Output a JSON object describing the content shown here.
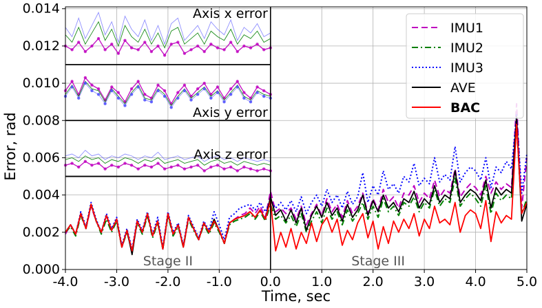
{
  "chart_data": {
    "type": "line",
    "xlabel": "Time, sec",
    "ylabel": "Error, rad",
    "xlim": [
      -4.0,
      5.0
    ],
    "ylim": [
      0.0,
      0.0141
    ],
    "xticks": [
      "-4.0",
      "-3.0",
      "-2.0",
      "-1.0",
      "0.0",
      "1.0",
      "2.0",
      "3.0",
      "4.0",
      "5.0"
    ],
    "yticks": [
      "0.000",
      "0.002",
      "0.004",
      "0.006",
      "0.008",
      "0.010",
      "0.012",
      "0.014"
    ],
    "grid": true,
    "legend_position": "top-right",
    "legend": [
      {
        "name": "IMU1",
        "color": "#bf00bf",
        "style": "dashed",
        "bold": false
      },
      {
        "name": "IMU2",
        "color": "#008000",
        "style": "dashdot",
        "bold": false
      },
      {
        "name": "IMU3",
        "color": "#0000ff",
        "style": "dotted",
        "bold": false
      },
      {
        "name": "AVE",
        "color": "#000000",
        "style": "solid",
        "bold": false
      },
      {
        "name": "BAC",
        "color": "#ff0000",
        "style": "solid",
        "bold": true
      }
    ],
    "stages": [
      {
        "label": "Stage II",
        "x": -2.0
      },
      {
        "label": "Stage III",
        "x": 2.1
      }
    ],
    "insets": [
      {
        "title": "Axis x error",
        "y_range": [
          0.011,
          0.0141
        ],
        "baseline": 0.012
      },
      {
        "title": "Axis y error",
        "y_range": [
          0.008,
          0.011
        ],
        "baseline": 0.0097
      },
      {
        "title": "Axis z error",
        "y_range": [
          0.005,
          0.008
        ],
        "baseline": 0.0057
      }
    ],
    "x": [
      -4.0,
      -3.9,
      -3.8,
      -3.7,
      -3.6,
      -3.5,
      -3.4,
      -3.3,
      -3.2,
      -3.1,
      -3.0,
      -2.9,
      -2.8,
      -2.7,
      -2.6,
      -2.5,
      -2.4,
      -2.3,
      -2.2,
      -2.1,
      -2.0,
      -1.9,
      -1.8,
      -1.7,
      -1.6,
      -1.5,
      -1.4,
      -1.3,
      -1.2,
      -1.1,
      -1.0,
      -0.9,
      -0.8,
      -0.7,
      -0.6,
      -0.5,
      -0.4,
      -0.3,
      -0.2,
      -0.1,
      0.0,
      0.1,
      0.2,
      0.3,
      0.4,
      0.5,
      0.6,
      0.7,
      0.8,
      0.9,
      1.0,
      1.1,
      1.2,
      1.3,
      1.4,
      1.5,
      1.6,
      1.7,
      1.8,
      1.9,
      2.0,
      2.1,
      2.2,
      2.3,
      2.4,
      2.5,
      2.6,
      2.7,
      2.8,
      2.9,
      3.0,
      3.1,
      3.2,
      3.3,
      3.4,
      3.5,
      3.6,
      3.7,
      3.8,
      3.9,
      4.0,
      4.1,
      4.2,
      4.3,
      4.4,
      4.5,
      4.6,
      4.7,
      4.8,
      4.9,
      5.0
    ],
    "series": [
      {
        "name": "IMU1",
        "values": [
          0.0019,
          0.0024,
          0.0019,
          0.003,
          0.0022,
          0.0034,
          0.0026,
          0.002,
          0.0029,
          0.0021,
          0.0027,
          0.0012,
          0.0021,
          0.001,
          0.0026,
          0.002,
          0.003,
          0.0018,
          0.0026,
          0.0011,
          0.003,
          0.0019,
          0.0024,
          0.0012,
          0.0028,
          0.0022,
          0.0016,
          0.0025,
          0.002,
          0.0026,
          0.0021,
          0.0014,
          0.0025,
          0.0027,
          0.0029,
          0.003,
          0.0033,
          0.003,
          0.0034,
          0.0028,
          0.0042,
          0.0031,
          0.0033,
          0.003,
          0.0033,
          0.0027,
          0.0034,
          0.0024,
          0.003,
          0.0035,
          0.0029,
          0.0038,
          0.0031,
          0.0035,
          0.0028,
          0.0037,
          0.003,
          0.0034,
          0.0041,
          0.003,
          0.0038,
          0.0032,
          0.0043,
          0.0036,
          0.0039,
          0.0033,
          0.0041,
          0.004,
          0.0045,
          0.0036,
          0.0041,
          0.0038,
          0.0048,
          0.0039,
          0.0043,
          0.0041,
          0.0054,
          0.0039,
          0.0043,
          0.0046,
          0.0044,
          0.004,
          0.005,
          0.0041,
          0.0047,
          0.0043,
          0.0046,
          0.0044,
          0.0089,
          0.0033,
          0.006
        ]
      },
      {
        "name": "IMU2",
        "values": [
          0.002,
          0.0023,
          0.0018,
          0.0029,
          0.0022,
          0.0035,
          0.0026,
          0.0019,
          0.0027,
          0.002,
          0.0026,
          0.0012,
          0.002,
          0.001,
          0.0025,
          0.0019,
          0.0029,
          0.0017,
          0.0025,
          0.0011,
          0.0029,
          0.0018,
          0.0023,
          0.0012,
          0.0027,
          0.0021,
          0.0016,
          0.0024,
          0.0019,
          0.0025,
          0.002,
          0.0014,
          0.0024,
          0.0026,
          0.0027,
          0.0028,
          0.003,
          0.0027,
          0.0031,
          0.0026,
          0.0035,
          0.0027,
          0.0029,
          0.0025,
          0.0029,
          0.0023,
          0.003,
          0.002,
          0.0026,
          0.0031,
          0.0025,
          0.0033,
          0.0027,
          0.0031,
          0.0024,
          0.0032,
          0.0026,
          0.003,
          0.0036,
          0.0027,
          0.0034,
          0.0028,
          0.0038,
          0.0031,
          0.0034,
          0.0029,
          0.0036,
          0.0034,
          0.0039,
          0.0031,
          0.0036,
          0.0033,
          0.0043,
          0.0034,
          0.0038,
          0.0036,
          0.0049,
          0.0034,
          0.0038,
          0.0041,
          0.0038,
          0.0034,
          0.0045,
          0.003,
          0.0041,
          0.0037,
          0.004,
          0.0038,
          0.0078,
          0.003,
          0.0038
        ]
      },
      {
        "name": "IMU3",
        "values": [
          0.002,
          0.0024,
          0.0019,
          0.0031,
          0.0023,
          0.0036,
          0.0027,
          0.002,
          0.003,
          0.0022,
          0.0028,
          0.0013,
          0.0022,
          0.0011,
          0.0027,
          0.0021,
          0.0031,
          0.0019,
          0.0028,
          0.0012,
          0.0031,
          0.002,
          0.0025,
          0.0013,
          0.0029,
          0.0023,
          0.0017,
          0.0026,
          0.0021,
          0.0031,
          0.0024,
          0.0016,
          0.0028,
          0.003,
          0.0033,
          0.0034,
          0.0035,
          0.0032,
          0.0036,
          0.0031,
          0.0037,
          0.0033,
          0.0036,
          0.0032,
          0.0037,
          0.0031,
          0.0039,
          0.003,
          0.0036,
          0.004,
          0.0034,
          0.0043,
          0.0036,
          0.004,
          0.0033,
          0.0042,
          0.0035,
          0.0039,
          0.0052,
          0.0036,
          0.0045,
          0.004,
          0.0053,
          0.0043,
          0.0046,
          0.0041,
          0.005,
          0.0047,
          0.0057,
          0.0045,
          0.0049,
          0.0046,
          0.006,
          0.0047,
          0.0051,
          0.0048,
          0.0066,
          0.0047,
          0.0052,
          0.0055,
          0.0053,
          0.0048,
          0.006,
          0.0044,
          0.0055,
          0.0052,
          0.0058,
          0.0054,
          0.0083,
          0.0041,
          0.0062
        ]
      },
      {
        "name": "AVE",
        "values": [
          0.002,
          0.0024,
          0.0019,
          0.003,
          0.0022,
          0.0035,
          0.0026,
          0.002,
          0.0029,
          0.0021,
          0.0027,
          0.0012,
          0.0021,
          0.0008,
          0.0026,
          0.002,
          0.003,
          0.0018,
          0.0026,
          0.0011,
          0.003,
          0.0019,
          0.0024,
          0.0012,
          0.0028,
          0.0022,
          0.0016,
          0.0025,
          0.002,
          0.0027,
          0.0021,
          0.0014,
          0.0025,
          0.0027,
          0.0028,
          0.0029,
          0.0031,
          0.0028,
          0.0032,
          0.0027,
          0.0039,
          0.0029,
          0.0032,
          0.0026,
          0.0032,
          0.0025,
          0.0033,
          0.0021,
          0.0029,
          0.0034,
          0.0028,
          0.0036,
          0.0029,
          0.0033,
          0.0026,
          0.0035,
          0.0028,
          0.0032,
          0.004,
          0.0029,
          0.0037,
          0.0031,
          0.004,
          0.0033,
          0.0036,
          0.0031,
          0.0038,
          0.0036,
          0.0042,
          0.0033,
          0.0038,
          0.0035,
          0.0045,
          0.0036,
          0.004,
          0.0038,
          0.0053,
          0.0036,
          0.004,
          0.0043,
          0.0041,
          0.0037,
          0.0048,
          0.0033,
          0.0044,
          0.004,
          0.0043,
          0.0041,
          0.0082,
          0.0026,
          0.0035
        ]
      },
      {
        "name": "BAC",
        "values": [
          0.002,
          0.0024,
          0.0019,
          0.003,
          0.0022,
          0.0035,
          0.0026,
          0.002,
          0.0029,
          0.0021,
          0.0027,
          0.0012,
          0.0021,
          0.001,
          0.0026,
          0.002,
          0.003,
          0.0018,
          0.0026,
          0.0011,
          0.003,
          0.0019,
          0.0024,
          0.0012,
          0.0028,
          0.0022,
          0.0016,
          0.0025,
          0.002,
          0.0026,
          0.0021,
          0.0014,
          0.0025,
          0.0027,
          0.0028,
          0.0029,
          0.0031,
          0.0028,
          0.0032,
          0.0027,
          0.0037,
          0.001,
          0.002,
          0.0012,
          0.0022,
          0.0011,
          0.002,
          0.0014,
          0.0025,
          0.0015,
          0.0024,
          0.0028,
          0.002,
          0.0027,
          0.0013,
          0.0021,
          0.0016,
          0.0025,
          0.003,
          0.0017,
          0.0026,
          0.0011,
          0.0023,
          0.0014,
          0.0026,
          0.002,
          0.0027,
          0.0022,
          0.003,
          0.0018,
          0.0027,
          0.0022,
          0.0034,
          0.0025,
          0.0027,
          0.0024,
          0.0036,
          0.002,
          0.0029,
          0.0032,
          0.003,
          0.0022,
          0.0037,
          0.0015,
          0.0031,
          0.0025,
          0.0029,
          0.0027,
          0.0078,
          0.003,
          0.0036
        ]
      }
    ],
    "inset_series": [
      {
        "inset": 0,
        "name": "IMU1",
        "values": [
          0.012,
          0.0118,
          0.0122,
          0.0117,
          0.012,
          0.0124,
          0.0118,
          0.0121,
          0.0116,
          0.0123,
          0.0119,
          0.0118,
          0.0122,
          0.0117,
          0.012,
          0.0115,
          0.0121,
          0.0122,
          0.0116,
          0.0118,
          0.012,
          0.0117,
          0.0121,
          0.0119,
          0.0118,
          0.0122,
          0.0117,
          0.012,
          0.0119,
          0.0121,
          0.0118,
          0.0119
        ]
      },
      {
        "inset": 0,
        "name": "IMU2",
        "values": [
          0.0126,
          0.0122,
          0.013,
          0.0121,
          0.0127,
          0.0133,
          0.0123,
          0.0129,
          0.012,
          0.0131,
          0.0125,
          0.0122,
          0.0129,
          0.0121,
          0.0127,
          0.0119,
          0.0128,
          0.013,
          0.0121,
          0.0124,
          0.0127,
          0.0121,
          0.0128,
          0.0125,
          0.0123,
          0.0129,
          0.0121,
          0.0126,
          0.0124,
          0.0128,
          0.0122,
          0.0124
        ]
      },
      {
        "inset": 0,
        "name": "IMU3",
        "values": [
          0.013,
          0.0125,
          0.0135,
          0.0124,
          0.0131,
          0.0138,
          0.0126,
          0.0133,
          0.0122,
          0.0136,
          0.0129,
          0.0125,
          0.0134,
          0.0123,
          0.0131,
          0.0121,
          0.0132,
          0.0135,
          0.0123,
          0.0127,
          0.0131,
          0.0124,
          0.0133,
          0.0129,
          0.0126,
          0.0134,
          0.0123,
          0.013,
          0.0127,
          0.0132,
          0.0125,
          0.0127
        ]
      },
      {
        "inset": 1,
        "name": "IMU1",
        "values": [
          0.0096,
          0.0101,
          0.0094,
          0.0103,
          0.0099,
          0.0097,
          0.0091,
          0.0098,
          0.0095,
          0.009,
          0.0097,
          0.0101,
          0.0094,
          0.0092,
          0.0099,
          0.0096,
          0.0089,
          0.0095,
          0.0099,
          0.0093,
          0.0097,
          0.01,
          0.0094,
          0.0098,
          0.0092,
          0.0097,
          0.0101,
          0.0095,
          0.0092,
          0.0098,
          0.0096,
          0.0094
        ]
      },
      {
        "inset": 1,
        "name": "IMU2",
        "values": [
          0.0094,
          0.0099,
          0.0093,
          0.0101,
          0.0097,
          0.0096,
          0.009,
          0.0097,
          0.0093,
          0.0089,
          0.0095,
          0.0099,
          0.0092,
          0.0091,
          0.0097,
          0.0094,
          0.0088,
          0.0093,
          0.0097,
          0.0092,
          0.0095,
          0.0098,
          0.0093,
          0.0096,
          0.0091,
          0.0095,
          0.0099,
          0.0093,
          0.0091,
          0.0096,
          0.0094,
          0.0093
        ]
      },
      {
        "inset": 1,
        "name": "IMU3",
        "values": [
          0.0093,
          0.0098,
          0.0092,
          0.01,
          0.0096,
          0.0094,
          0.0089,
          0.0096,
          0.0092,
          0.0088,
          0.0094,
          0.0098,
          0.0091,
          0.009,
          0.0096,
          0.0093,
          0.0087,
          0.0092,
          0.0096,
          0.0091,
          0.0094,
          0.0097,
          0.0092,
          0.0095,
          0.009,
          0.0094,
          0.0098,
          0.0092,
          0.009,
          0.0095,
          0.0093,
          0.0092
        ]
      },
      {
        "inset": 2,
        "name": "IMU1",
        "values": [
          0.0056,
          0.0057,
          0.0055,
          0.0058,
          0.0056,
          0.0057,
          0.0054,
          0.0056,
          0.0055,
          0.0057,
          0.0056,
          0.0054,
          0.0056,
          0.0055,
          0.0057,
          0.0054,
          0.0055,
          0.0056,
          0.0054,
          0.0055,
          0.0056,
          0.0053,
          0.0055,
          0.0056,
          0.0054,
          0.0055,
          0.0053,
          0.0055,
          0.0054,
          0.0053,
          0.0054,
          0.0053
        ]
      },
      {
        "inset": 2,
        "name": "IMU2",
        "values": [
          0.0059,
          0.006,
          0.0058,
          0.0061,
          0.0059,
          0.006,
          0.0057,
          0.0059,
          0.0058,
          0.006,
          0.0059,
          0.0057,
          0.0059,
          0.0058,
          0.006,
          0.0057,
          0.0058,
          0.0059,
          0.0057,
          0.0058,
          0.0059,
          0.0056,
          0.0058,
          0.0059,
          0.0057,
          0.0058,
          0.0056,
          0.0058,
          0.0057,
          0.0056,
          0.0057,
          0.0056
        ]
      },
      {
        "inset": 2,
        "name": "IMU3",
        "values": [
          0.0061,
          0.0062,
          0.006,
          0.0064,
          0.0061,
          0.0062,
          0.0059,
          0.0061,
          0.006,
          0.0062,
          0.0061,
          0.0059,
          0.0061,
          0.006,
          0.0063,
          0.0059,
          0.006,
          0.0061,
          0.0059,
          0.006,
          0.0061,
          0.0058,
          0.006,
          0.0061,
          0.0059,
          0.006,
          0.0058,
          0.006,
          0.0059,
          0.0058,
          0.0059,
          0.0058
        ]
      }
    ]
  }
}
